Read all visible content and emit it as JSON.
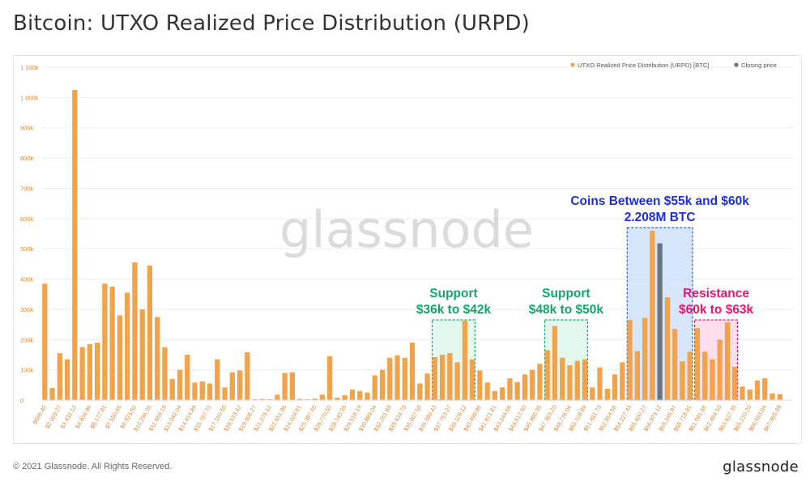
{
  "title": "Bitcoin: UTXO Realized Price Distribution (URPD)",
  "footer": {
    "copyright": "© 2021 Glassnode. All Rights Reserved.",
    "brand": "glassnode"
  },
  "watermark": "glassnode",
  "colors": {
    "bar": "#f0a34a",
    "closing_bar": "#6b7280",
    "axis_text": "#d08a3a",
    "support": "#16a46b",
    "support_fill": "#d8f5e8",
    "blue": "#1e2fd6",
    "blue_fill": "#c9defb",
    "resistance": "#e0186e",
    "resistance_fill": "#fbd3e6"
  },
  "chart_data": {
    "type": "bar",
    "title": "",
    "xlabel": "",
    "ylabel": "",
    "ylim": [
      0,
      1100000
    ],
    "yticks": [
      0,
      100000,
      200000,
      300000,
      400000,
      500000,
      600000,
      700000,
      800000,
      900000,
      1000000,
      1100000
    ],
    "ytick_labels": [
      "0",
      "100k",
      "200k",
      "300k",
      "400k",
      "500k",
      "600k",
      "700k",
      "800k",
      "900k",
      "1 000k",
      "1 100k"
    ],
    "grid": true,
    "legend_position": "top-right",
    "legend": [
      {
        "label": "UTXO Realized Price Distribution (URPD) [BTC]",
        "color": "#f0a34a"
      },
      {
        "label": "Closing price",
        "color": "#6b7280"
      }
    ],
    "xtick_labels": [
      {
        "index": 0,
        "label": "$686.42"
      },
      {
        "index": 4,
        "label": "$2,059.27"
      },
      {
        "index": 8,
        "label": "$3,432.12"
      },
      {
        "index": 12,
        "label": "$4,804.96"
      },
      {
        "index": 16,
        "label": "$6,177.81"
      },
      {
        "index": 20,
        "label": "$7,550.65"
      },
      {
        "index": 24,
        "label": "$8,923.50"
      },
      {
        "index": 28,
        "label": "$10,296.35"
      },
      {
        "index": 32,
        "label": "$11,669.19"
      },
      {
        "index": 36,
        "label": "$13,042.04"
      },
      {
        "index": 40,
        "label": "$14,414.89"
      },
      {
        "index": 44,
        "label": "$15,787.73"
      },
      {
        "index": 48,
        "label": "$17,160.58"
      },
      {
        "index": 52,
        "label": "$18,533.42"
      },
      {
        "index": 56,
        "label": "$19,906.27"
      },
      {
        "index": 60,
        "label": "$21,279.12"
      },
      {
        "index": 64,
        "label": "$22,651.96"
      },
      {
        "index": 68,
        "label": "$24,024.81"
      },
      {
        "index": 72,
        "label": "$25,397.65"
      },
      {
        "index": 76,
        "label": "$26,770.50"
      },
      {
        "index": 80,
        "label": "$28,143.35"
      },
      {
        "index": 84,
        "label": "$29,516.19"
      },
      {
        "index": 88,
        "label": "$30,889.04"
      },
      {
        "index": 92,
        "label": "$32,261.89"
      },
      {
        "index": 96,
        "label": "$33,634.73"
      },
      {
        "index": 100,
        "label": "$35,007.58"
      },
      {
        "index": 104,
        "label": "$36,380.43"
      },
      {
        "index": 108,
        "label": "$37,753.27"
      },
      {
        "index": 112,
        "label": "$39,126.12"
      },
      {
        "index": 116,
        "label": "$40,498.96"
      },
      {
        "index": 120,
        "label": "$41,871.81"
      },
      {
        "index": 124,
        "label": "$43,244.66"
      },
      {
        "index": 128,
        "label": "$44,617.50"
      },
      {
        "index": 132,
        "label": "$45,990.35"
      },
      {
        "index": 136,
        "label": "$47,363.20"
      },
      {
        "index": 140,
        "label": "$48,736.04"
      },
      {
        "index": 144,
        "label": "$50,108.89"
      },
      {
        "index": 148,
        "label": "$51,481.73"
      },
      {
        "index": 152,
        "label": "$52,854.58"
      },
      {
        "index": 156,
        "label": "$54,227.43"
      },
      {
        "index": 160,
        "label": "$55,600.27"
      },
      {
        "index": 164,
        "label": "$56,973.12"
      },
      {
        "index": 168,
        "label": "$58,345.97"
      },
      {
        "index": 172,
        "label": "$59,718.81"
      },
      {
        "index": 176,
        "label": "$61,091.66"
      },
      {
        "index": 180,
        "label": "$62,464.50"
      },
      {
        "index": 184,
        "label": "$63,837.35"
      },
      {
        "index": 188,
        "label": "$65,210.20"
      },
      {
        "index": 192,
        "label": "$66,583.04"
      },
      {
        "index": 196,
        "label": "$67,955.89"
      }
    ],
    "category_count": 200,
    "bars": [
      {
        "index": 0,
        "value": 385000
      },
      {
        "index": 2,
        "value": 40000
      },
      {
        "index": 4,
        "value": 155000
      },
      {
        "index": 6,
        "value": 135000
      },
      {
        "index": 8,
        "value": 1025000
      },
      {
        "index": 10,
        "value": 175000
      },
      {
        "index": 12,
        "value": 185000
      },
      {
        "index": 14,
        "value": 190000
      },
      {
        "index": 16,
        "value": 385000
      },
      {
        "index": 18,
        "value": 375000
      },
      {
        "index": 20,
        "value": 280000
      },
      {
        "index": 22,
        "value": 355000
      },
      {
        "index": 24,
        "value": 455000
      },
      {
        "index": 26,
        "value": 300000
      },
      {
        "index": 28,
        "value": 445000
      },
      {
        "index": 30,
        "value": 275000
      },
      {
        "index": 32,
        "value": 175000
      },
      {
        "index": 34,
        "value": 70000
      },
      {
        "index": 36,
        "value": 100000
      },
      {
        "index": 38,
        "value": 150000
      },
      {
        "index": 40,
        "value": 58000
      },
      {
        "index": 42,
        "value": 62000
      },
      {
        "index": 44,
        "value": 55000
      },
      {
        "index": 46,
        "value": 135000
      },
      {
        "index": 48,
        "value": 42000
      },
      {
        "index": 50,
        "value": 92000
      },
      {
        "index": 52,
        "value": 98000
      },
      {
        "index": 54,
        "value": 158000
      },
      {
        "index": 56,
        "value": 3000
      },
      {
        "index": 58,
        "value": 4000
      },
      {
        "index": 60,
        "value": 3000
      },
      {
        "index": 62,
        "value": 18000
      },
      {
        "index": 64,
        "value": 90000
      },
      {
        "index": 66,
        "value": 92000
      },
      {
        "index": 68,
        "value": 4000
      },
      {
        "index": 70,
        "value": 3000
      },
      {
        "index": 72,
        "value": 5000
      },
      {
        "index": 74,
        "value": 18000
      },
      {
        "index": 76,
        "value": 145000
      },
      {
        "index": 78,
        "value": 8000
      },
      {
        "index": 80,
        "value": 16000
      },
      {
        "index": 82,
        "value": 35000
      },
      {
        "index": 84,
        "value": 30000
      },
      {
        "index": 86,
        "value": 25000
      },
      {
        "index": 88,
        "value": 82000
      },
      {
        "index": 90,
        "value": 100000
      },
      {
        "index": 92,
        "value": 140000
      },
      {
        "index": 94,
        "value": 148000
      },
      {
        "index": 96,
        "value": 140000
      },
      {
        "index": 98,
        "value": 190000
      },
      {
        "index": 100,
        "value": 55000
      },
      {
        "index": 102,
        "value": 88000
      },
      {
        "index": 104,
        "value": 142000
      },
      {
        "index": 106,
        "value": 150000
      },
      {
        "index": 108,
        "value": 155000
      },
      {
        "index": 110,
        "value": 125000
      },
      {
        "index": 112,
        "value": 262000
      },
      {
        "index": 114,
        "value": 135000
      },
      {
        "index": 116,
        "value": 98000
      },
      {
        "index": 118,
        "value": 58000
      },
      {
        "index": 120,
        "value": 30000
      },
      {
        "index": 122,
        "value": 42000
      },
      {
        "index": 124,
        "value": 72000
      },
      {
        "index": 126,
        "value": 60000
      },
      {
        "index": 128,
        "value": 85000
      },
      {
        "index": 130,
        "value": 100000
      },
      {
        "index": 132,
        "value": 120000
      },
      {
        "index": 134,
        "value": 165000
      },
      {
        "index": 136,
        "value": 245000
      },
      {
        "index": 138,
        "value": 140000
      },
      {
        "index": 140,
        "value": 115000
      },
      {
        "index": 142,
        "value": 130000
      },
      {
        "index": 144,
        "value": 135000
      },
      {
        "index": 146,
        "value": 42000
      },
      {
        "index": 148,
        "value": 108000
      },
      {
        "index": 150,
        "value": 38000
      },
      {
        "index": 152,
        "value": 85000
      },
      {
        "index": 154,
        "value": 125000
      },
      {
        "index": 156,
        "value": 265000
      },
      {
        "index": 158,
        "value": 162000
      },
      {
        "index": 160,
        "value": 272000
      },
      {
        "index": 162,
        "value": 560000
      },
      {
        "index": 164,
        "value": 518000,
        "closing": true
      },
      {
        "index": 166,
        "value": 340000
      },
      {
        "index": 168,
        "value": 235000
      },
      {
        "index": 170,
        "value": 128000
      },
      {
        "index": 172,
        "value": 160000
      },
      {
        "index": 174,
        "value": 238000
      },
      {
        "index": 176,
        "value": 160000
      },
      {
        "index": 178,
        "value": 135000
      },
      {
        "index": 180,
        "value": 200000
      },
      {
        "index": 182,
        "value": 258000
      },
      {
        "index": 184,
        "value": 110000
      },
      {
        "index": 186,
        "value": 45000
      },
      {
        "index": 188,
        "value": 35000
      },
      {
        "index": 190,
        "value": 65000
      },
      {
        "index": 192,
        "value": 72000
      },
      {
        "index": 194,
        "value": 22000
      },
      {
        "index": 196,
        "value": 20000
      }
    ],
    "annotations": [
      {
        "id": "support-36-42",
        "lines": [
          "Support",
          "$36k to $42k"
        ],
        "x_range": [
          104,
          114
        ],
        "y_max": 265000,
        "style": "support"
      },
      {
        "id": "support-48-50",
        "lines": [
          "Support",
          "$48k to $50k"
        ],
        "x_range": [
          134,
          144
        ],
        "y_max": 265000,
        "style": "support"
      },
      {
        "id": "coins-55-60",
        "lines": [
          "Coins Between $55k and $60k",
          "2.208M BTC"
        ],
        "x_range": [
          156,
          172
        ],
        "y_max": 570000,
        "style": "blue"
      },
      {
        "id": "resistance-60-63",
        "lines": [
          "Resistance",
          "$60k to $63k"
        ],
        "x_range": [
          174,
          184
        ],
        "y_max": 265000,
        "style": "resistance"
      }
    ]
  }
}
